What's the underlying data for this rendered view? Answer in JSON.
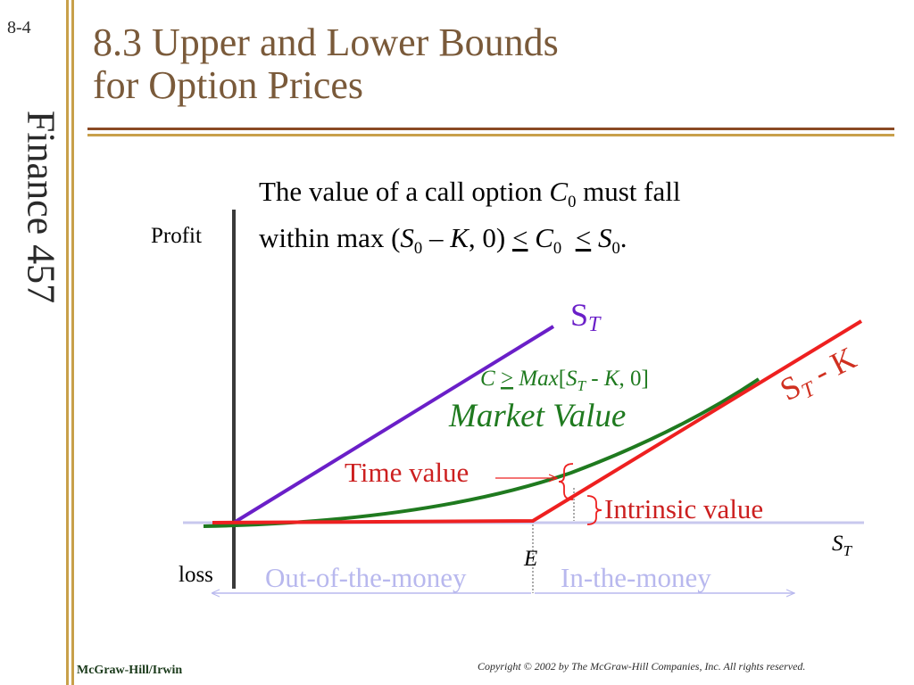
{
  "slide": {
    "number": "8-4",
    "side_title": "Finance 457",
    "title_line1": "8.3 Upper and Lower Bounds",
    "title_line2": "for Option Prices",
    "footer_left": "McGraw-Hill/Irwin",
    "footer_right": "Copyright © 2002 by The McGraw-Hill Companies, Inc.  All rights reserved."
  },
  "intro": {
    "line1_a": "The value of a call option ",
    "line1_c": "C",
    "line1_sub": "0",
    "line1_b": " must fall",
    "line2": {
      "a": "within max (",
      "s": "S",
      "s_sub": "0",
      "b": " – ",
      "k": "K",
      "c": ", 0) ",
      "le1": "<",
      "d": " ",
      "c0": "C",
      "c0_sub": "0",
      "e": "  ",
      "le2": "<",
      "f": " ",
      "s0": "S",
      "s0_sub": "0",
      "g": "."
    }
  },
  "diagram": {
    "profit_label": "Profit",
    "loss_label": "loss",
    "x_axis_label": "S",
    "x_axis_sub": "T",
    "strike_label": "E",
    "st_line_label": "S",
    "st_line_sub": "T",
    "payoff_label_main": "S",
    "payoff_label_sub": "T",
    "payoff_label_rest": " - K",
    "bound_c": "C",
    "bound_ge": ">",
    "bound_max": "Max",
    "bound_bracket": "[",
    "bound_s": "S",
    "bound_s_sub": "T",
    "bound_minus": " - ",
    "bound_k": "K",
    "bound_rest": ", 0]",
    "market_value_label": "Market Value",
    "time_value_label": "Time value",
    "intrinsic_value_label": "Intrinsic value",
    "otm_label": "Out-of-the-money",
    "itm_label": "In-the-money",
    "colors": {
      "st_line": "#6a1fc8",
      "payoff": "#ee2020",
      "market_value": "#1f7a1f",
      "bound_text": "#1f7a1f",
      "axis_h": "#c8c8ee",
      "money": "#b8b8ee",
      "payoff_text": "#d03020"
    }
  }
}
